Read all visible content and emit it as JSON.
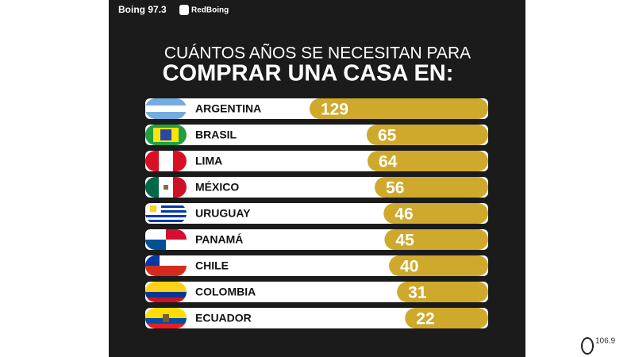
{
  "brand": {
    "station": "Boing 97.3",
    "network": "RedBoing"
  },
  "watermark": "106.9",
  "chart_data": {
    "type": "bar",
    "orientation": "horizontal",
    "title": [
      "CUÁNTOS AÑOS SE NECESITAN PARA",
      "COMPRAR UNA CASA EN:"
    ],
    "categories": [
      "ARGENTINA",
      "BRASIL",
      "LIMA",
      "MÉXICO",
      "URUGUAY",
      "PANAMÁ",
      "CHILE",
      "COLOMBIA",
      "ECUADOR"
    ],
    "values": [
      129,
      65,
      64,
      56,
      46,
      45,
      40,
      31,
      22
    ],
    "color": "#cfa92b"
  }
}
